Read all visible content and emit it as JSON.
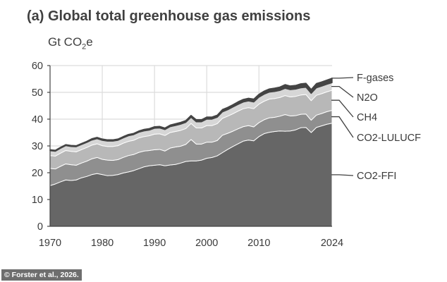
{
  "title": "(a) Global total greenhouse gas emissions",
  "unit_prefix": "Gt CO",
  "unit_sub": "2",
  "unit_suffix": "e",
  "credit": "© Forster et al., 2026.",
  "chart_data": {
    "type": "area",
    "stacked": true,
    "title": "(a) Global total greenhouse gas emissions",
    "ylabel": "Gt CO2e",
    "xlim": [
      1970,
      2024
    ],
    "ylim": [
      0,
      60
    ],
    "yticks": [
      0,
      10,
      20,
      30,
      40,
      50,
      60
    ],
    "xticks": [
      1970,
      1980,
      1990,
      2000,
      2010,
      2024
    ],
    "grid": true,
    "legend": "right, labels at line ends",
    "colors": {
      "CO2-FFI": "#666666",
      "CO2-LULUCF": "#8f8f8f",
      "CH4": "#b8b8b8",
      "N2O": "#d6d6d6",
      "F-gases": "#444444"
    },
    "x": [
      1970,
      1971,
      1972,
      1973,
      1974,
      1975,
      1976,
      1977,
      1978,
      1979,
      1980,
      1981,
      1982,
      1983,
      1984,
      1985,
      1986,
      1987,
      1988,
      1989,
      1990,
      1991,
      1992,
      1993,
      1994,
      1995,
      1996,
      1997,
      1998,
      1999,
      2000,
      2001,
      2002,
      2003,
      2004,
      2005,
      2006,
      2007,
      2008,
      2009,
      2010,
      2011,
      2012,
      2013,
      2014,
      2015,
      2016,
      2017,
      2018,
      2019,
      2020,
      2021,
      2022,
      2023,
      2024
    ],
    "series": [
      {
        "name": "CO2-FFI",
        "values": [
          15.2,
          15.8,
          16.6,
          17.3,
          17.1,
          17.3,
          18.1,
          18.6,
          19.3,
          19.7,
          19.3,
          18.9,
          19.0,
          19.3,
          19.9,
          20.3,
          20.8,
          21.5,
          22.2,
          22.6,
          22.8,
          23.0,
          22.6,
          22.9,
          23.1,
          23.6,
          24.2,
          24.4,
          24.4,
          24.7,
          25.4,
          25.7,
          26.3,
          27.5,
          28.7,
          29.8,
          30.8,
          31.8,
          32.2,
          31.9,
          33.5,
          34.6,
          35.1,
          35.4,
          35.6,
          35.5,
          35.6,
          36.0,
          36.8,
          36.9,
          35.0,
          36.9,
          37.5,
          38.1,
          38.5
        ]
      },
      {
        "name": "CO2-LULUCF",
        "values": [
          6.4,
          5.6,
          5.8,
          6.0,
          5.9,
          5.5,
          5.5,
          5.7,
          5.9,
          6.0,
          5.7,
          5.8,
          5.6,
          5.6,
          5.8,
          6.1,
          6.0,
          6.1,
          5.9,
          5.7,
          5.8,
          5.7,
          5.5,
          6.3,
          6.5,
          6.3,
          6.4,
          8.0,
          6.3,
          6.0,
          6.0,
          5.7,
          5.7,
          6.5,
          6.0,
          5.7,
          5.6,
          5.4,
          5.4,
          5.2,
          5.2,
          5.2,
          5.4,
          5.3,
          5.5,
          6.2,
          5.6,
          5.3,
          5.0,
          5.0,
          4.6,
          4.6,
          4.6,
          4.7,
          4.8
        ]
      },
      {
        "name": "CH4",
        "values": [
          4.8,
          4.8,
          4.9,
          5.0,
          5.0,
          5.0,
          5.0,
          5.1,
          5.1,
          5.1,
          5.1,
          5.1,
          5.2,
          5.2,
          5.3,
          5.3,
          5.3,
          5.4,
          5.4,
          5.5,
          5.8,
          5.8,
          5.8,
          5.8,
          5.8,
          5.9,
          5.9,
          6.0,
          6.0,
          6.0,
          6.2,
          6.2,
          6.3,
          6.3,
          6.4,
          6.5,
          6.6,
          6.7,
          6.7,
          6.8,
          6.9,
          6.9,
          7.0,
          7.0,
          7.0,
          7.1,
          7.1,
          7.2,
          7.2,
          7.3,
          7.3,
          7.4,
          7.4,
          7.4,
          7.5
        ]
      },
      {
        "name": "N2O",
        "values": [
          1.8,
          1.8,
          1.8,
          1.8,
          1.8,
          1.9,
          1.9,
          1.9,
          1.9,
          1.9,
          2.0,
          2.0,
          2.0,
          2.0,
          2.0,
          2.1,
          2.1,
          2.1,
          2.1,
          2.1,
          2.2,
          2.2,
          2.2,
          2.2,
          2.2,
          2.3,
          2.3,
          2.3,
          2.3,
          2.3,
          2.4,
          2.4,
          2.4,
          2.4,
          2.4,
          2.5,
          2.5,
          2.5,
          2.5,
          2.5,
          2.6,
          2.6,
          2.6,
          2.6,
          2.6,
          2.7,
          2.7,
          2.7,
          2.7,
          2.7,
          2.7,
          2.8,
          2.8,
          2.8,
          2.8
        ]
      },
      {
        "name": "F-gases",
        "values": [
          0.4,
          0.4,
          0.4,
          0.4,
          0.4,
          0.4,
          0.4,
          0.4,
          0.5,
          0.5,
          0.5,
          0.5,
          0.5,
          0.5,
          0.5,
          0.5,
          0.5,
          0.5,
          0.6,
          0.6,
          0.6,
          0.6,
          0.6,
          0.6,
          0.7,
          0.7,
          0.7,
          0.7,
          0.8,
          0.8,
          0.8,
          0.8,
          0.8,
          0.9,
          0.9,
          0.9,
          1.0,
          1.0,
          1.0,
          1.1,
          1.1,
          1.2,
          1.2,
          1.3,
          1.3,
          1.4,
          1.4,
          1.4,
          1.5,
          1.5,
          1.5,
          1.6,
          1.6,
          1.6,
          1.7
        ]
      }
    ],
    "legend_order": [
      "F-gases",
      "N2O",
      "CH4",
      "CO2-LULUCF",
      "CO2-FFI"
    ]
  }
}
